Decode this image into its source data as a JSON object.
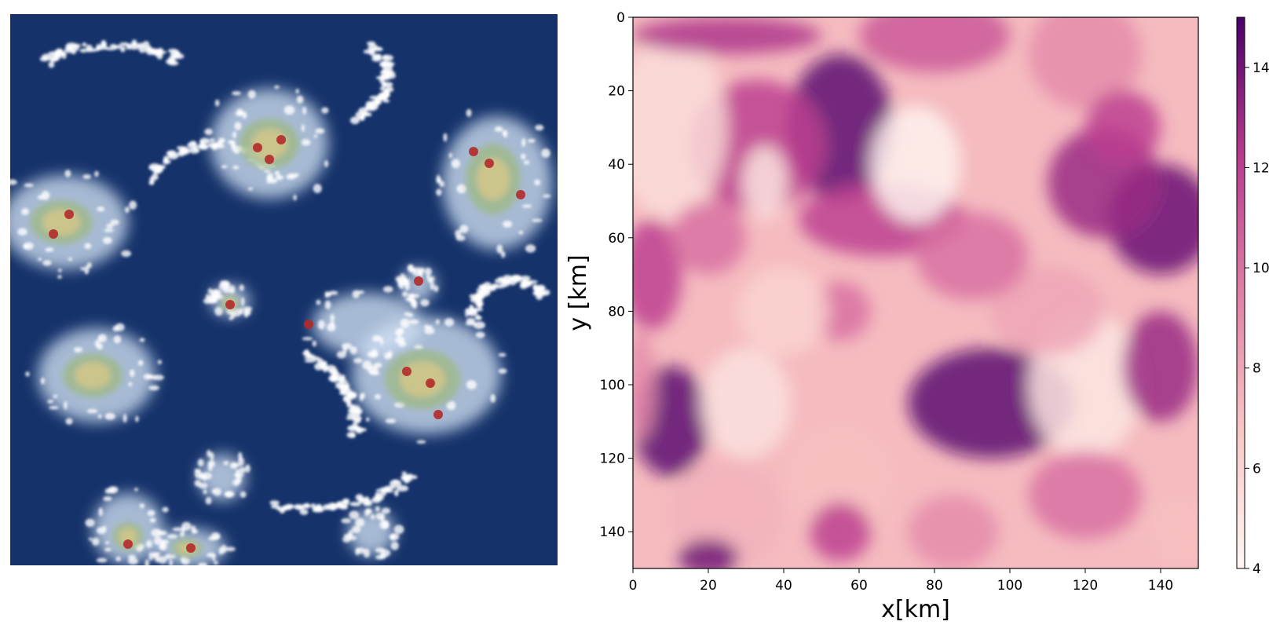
{
  "chart_data": [
    {
      "type": "image",
      "colors": {
        "background": "#15326a",
        "cloud": "#ffffff",
        "precip_low": "#9fb98b",
        "precip_mid": "#d8c98a",
        "precip_high": "#b22a2a"
      }
    },
    {
      "type": "heatmap",
      "xlabel": "x[km]",
      "ylabel": "y [km]",
      "xlim": [
        0,
        150
      ],
      "ylim": [
        150,
        0
      ],
      "x_ticks": [
        0,
        20,
        40,
        60,
        80,
        100,
        120,
        140
      ],
      "y_ticks": [
        0,
        20,
        40,
        60,
        80,
        100,
        120,
        140
      ],
      "colorbar": {
        "range": [
          4,
          15
        ],
        "ticks": [
          4,
          6,
          8,
          10,
          12,
          14
        ],
        "colors": [
          "#fff7f3",
          "#f9c7c4",
          "#e07fa6",
          "#b93a8e",
          "#49006a"
        ]
      }
    }
  ]
}
